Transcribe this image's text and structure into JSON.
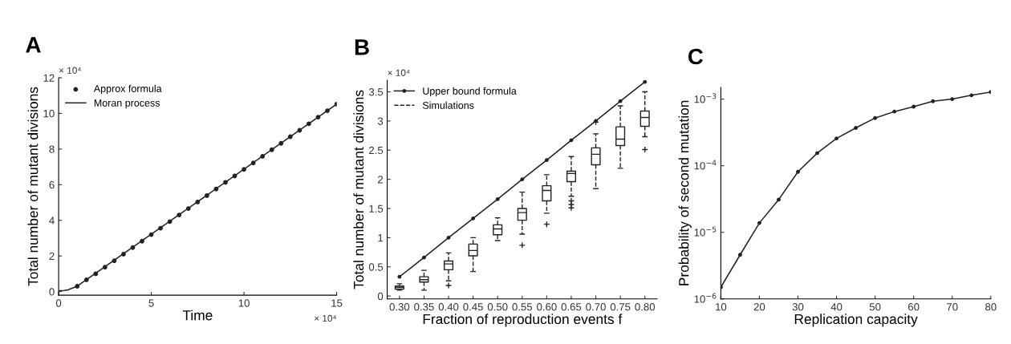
{
  "chart_data": [
    {
      "type": "line",
      "title": "A",
      "xlabel": "Time",
      "ylabel": "Total number of mutant divisions",
      "annotations": [
        "× 10⁴",
        "× 10⁴"
      ],
      "xlim": [
        0,
        15
      ],
      "ylim": [
        -0.2,
        12
      ],
      "xticks": [
        0,
        5,
        10,
        15
      ],
      "yticks": [
        0,
        2,
        4,
        6,
        8,
        10,
        12
      ],
      "legend": "top left",
      "series": [
        {
          "name": "Approx formula",
          "type": "scatter",
          "marker": "circle",
          "color": "#222222",
          "x": [
            1,
            1.5,
            2,
            2.5,
            3,
            3.5,
            4,
            4.5,
            5,
            5.5,
            6,
            6.5,
            7,
            7.5,
            8,
            8.5,
            9,
            9.5,
            10,
            10.5,
            11,
            11.5,
            12,
            12.5,
            13,
            13.5,
            14,
            14.5,
            15
          ],
          "values": [
            0.3,
            0.66,
            1.0,
            1.37,
            1.73,
            2.1,
            2.47,
            2.83,
            3.2,
            3.56,
            3.93,
            4.3,
            4.66,
            5.03,
            5.39,
            5.76,
            6.13,
            6.49,
            6.86,
            7.22,
            7.59,
            7.96,
            8.32,
            8.69,
            9.05,
            9.42,
            9.79,
            10.15,
            10.52
          ]
        },
        {
          "name": "Moran process",
          "type": "line",
          "line_style": "solid",
          "color": "#222222",
          "x": [
            0,
            0.3,
            0.5,
            0.75,
            1,
            15
          ],
          "values": [
            0.05,
            0.06,
            0.1,
            0.2,
            0.3,
            10.52
          ]
        }
      ]
    },
    {
      "type": "box",
      "title": "B",
      "xlabel": "Fraction of reproduction events f",
      "ylabel": "Total number of mutant divisions",
      "annotations": [
        "× 10⁴"
      ],
      "ylim": [
        -0.05,
        3.7
      ],
      "yticks": [
        {
          "value": 0,
          "label": "0"
        },
        0.5,
        1,
        1.5,
        2,
        2.5,
        3,
        3.5
      ],
      "legend": "top left",
      "categories": [
        "0.30",
        "0.35",
        "0.40",
        "0.45",
        "0.50",
        "0.55",
        "0.60",
        "0.65",
        "0.70",
        "0.75",
        "0.80"
      ],
      "series": [
        {
          "name": "Upper bound formula",
          "type": "line",
          "marker": "circle",
          "line_style": "solid",
          "color": "#222222",
          "values": [
            0.33,
            0.66,
            1.0,
            1.33,
            1.66,
            2.0,
            2.33,
            2.67,
            3.0,
            3.34,
            3.67
          ]
        },
        {
          "name": "Simulations",
          "type": "box",
          "line_style": "dashed",
          "color": "#222222",
          "boxes": [
            {
              "low": 0.1,
              "q1": 0.12,
              "median": 0.15,
              "q3": 0.17,
              "high": 0.21
            },
            {
              "low": 0.1,
              "q1": 0.24,
              "median": 0.28,
              "q3": 0.33,
              "high": 0.44
            },
            {
              "low": 0.26,
              "q1": 0.45,
              "median": 0.55,
              "q3": 0.6,
              "high": 0.74,
              "outliers": [
                0.18
              ]
            },
            {
              "low": 0.42,
              "q1": 0.69,
              "median": 0.78,
              "q3": 0.89,
              "high": 1.0
            },
            {
              "low": 0.95,
              "q1": 1.05,
              "median": 1.15,
              "q3": 1.22,
              "high": 1.34
            },
            {
              "low": 1.06,
              "q1": 1.3,
              "median": 1.43,
              "q3": 1.5,
              "high": 1.78,
              "outliers": [
                0.87
              ]
            },
            {
              "low": 1.42,
              "q1": 1.63,
              "median": 1.81,
              "q3": 1.89,
              "high": 2.08,
              "outliers": [
                1.23
              ]
            },
            {
              "low": 1.71,
              "q1": 1.96,
              "median": 2.1,
              "q3": 2.14,
              "high": 2.39,
              "outliers": [
                1.63,
                1.57,
                1.51
              ]
            },
            {
              "low": 1.84,
              "q1": 2.25,
              "median": 2.43,
              "q3": 2.54,
              "high": 2.78,
              "outliers": [
                2.98
              ]
            },
            {
              "low": 2.19,
              "q1": 2.58,
              "median": 2.69,
              "q3": 2.9,
              "high": 3.26
            },
            {
              "low": 2.73,
              "q1": 2.91,
              "median": 3.06,
              "q3": 3.17,
              "high": 3.5,
              "outliers": [
                2.51
              ]
            }
          ]
        }
      ]
    },
    {
      "type": "line",
      "title": "C",
      "xlabel": "Replication capacity",
      "ylabel": "Probability of second mutation",
      "log": "y",
      "marker": "circle",
      "line_style": "solid",
      "xlim": [
        10,
        80
      ],
      "ylim": [
        1e-06,
        0.0015
      ],
      "xticks": [
        10,
        20,
        30,
        40,
        50,
        60,
        70,
        80
      ],
      "yticks": [
        {
          "value": 1e-06,
          "label": "10$^{−6}$"
        },
        {
          "value": 1e-05,
          "label": "10$^{−5}$"
        },
        {
          "value": 0.0001,
          "label": "10$^{−4}$"
        },
        {
          "value": 0.001,
          "label": "10$^{−3}$"
        }
      ],
      "x": [
        10,
        15,
        20,
        25,
        30,
        35,
        40,
        45,
        50,
        55,
        60,
        65,
        70,
        75,
        80
      ],
      "series": [
        {
          "color": "#222222",
          "values": [
            1.5e-06,
            4.6e-06,
            1.38e-05,
            3.1e-05,
            8.1e-05,
            0.000155,
            0.000257,
            0.00037,
            0.00052,
            0.00065,
            0.00077,
            0.00093,
            0.001,
            0.00114,
            0.00128
          ]
        }
      ]
    }
  ]
}
